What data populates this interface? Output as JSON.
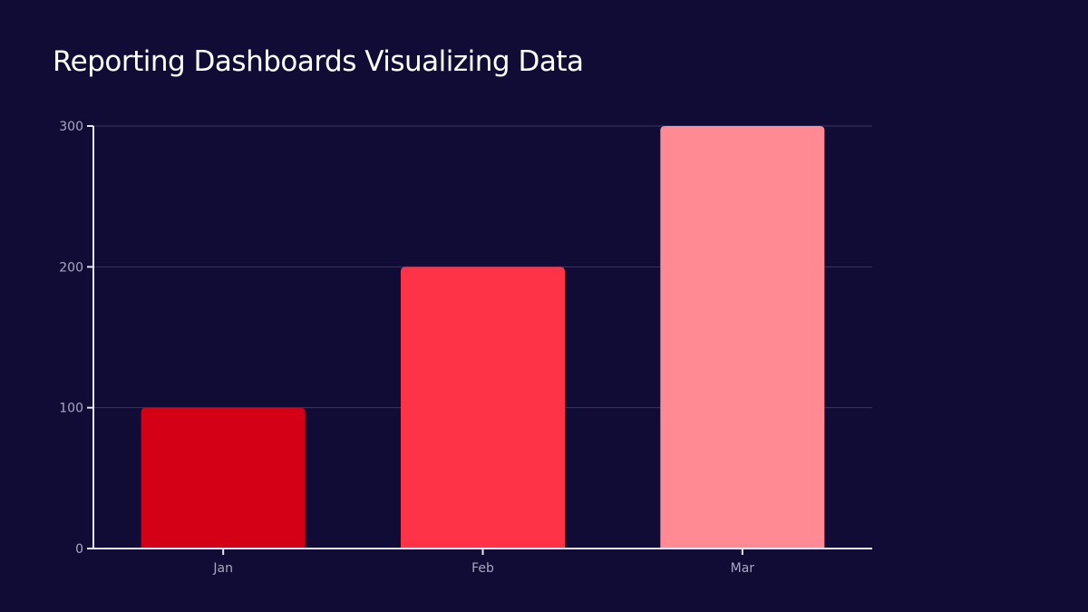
{
  "chart_data": {
    "type": "bar",
    "title": "Reporting Dashboards Visualizing Data",
    "xlabel": "",
    "ylabel": "",
    "categories": [
      "Jan",
      "Feb",
      "Mar"
    ],
    "values": [
      100,
      200,
      300
    ],
    "colors": [
      "#d40016",
      "#ff3347",
      "#ff8a93"
    ],
    "ylim": [
      0,
      300
    ],
    "yticks": [
      0,
      100,
      200,
      300
    ],
    "grid": true,
    "background": "#110c36",
    "gridColor": "#3a3660",
    "axisColor": "#e6e4f4"
  }
}
